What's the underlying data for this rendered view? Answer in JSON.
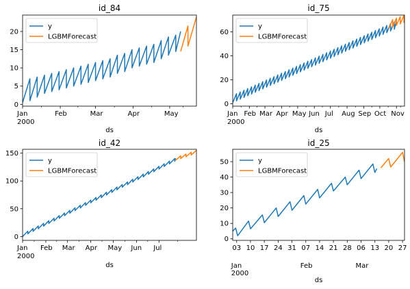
{
  "chart_data": [
    {
      "type": "line",
      "title": "id_84",
      "xlabel": "ds",
      "ylabel": "",
      "xlim": [
        0,
        143
      ],
      "ylim": [
        -0.5,
        24.5
      ],
      "x_ticks": [
        {
          "x": 0,
          "label": "Jan",
          "sub": "2000"
        },
        {
          "x": 31,
          "label": "Feb"
        },
        {
          "x": 60,
          "label": "Mar"
        },
        {
          "x": 91,
          "label": "Apr"
        },
        {
          "x": 121,
          "label": "May"
        }
      ],
      "y_ticks": [
        0,
        5,
        10,
        15,
        20
      ],
      "legend": {
        "placement": "top-left",
        "entries": [
          "y",
          "LGBMForecast"
        ]
      },
      "series": [
        {
          "name": "y",
          "color": "#1f77b4",
          "points": [
            [
              0,
              0.5
            ],
            [
              6,
              7
            ],
            [
              6,
              1
            ],
            [
              12,
              7.5
            ],
            [
              12,
              2
            ],
            [
              18,
              8
            ],
            [
              18,
              3
            ],
            [
              24,
              8.5
            ],
            [
              24,
              3.5
            ],
            [
              30,
              9
            ],
            [
              30,
              4
            ],
            [
              36,
              9.5
            ],
            [
              36,
              4.5
            ],
            [
              42,
              10
            ],
            [
              42,
              5
            ],
            [
              48,
              10.5
            ],
            [
              48,
              5.5
            ],
            [
              54,
              11
            ],
            [
              54,
              6
            ],
            [
              60,
              11.5
            ],
            [
              60,
              6.5
            ],
            [
              66,
              12
            ],
            [
              66,
              7
            ],
            [
              72,
              12.5
            ],
            [
              72,
              7.5
            ],
            [
              78,
              13.5
            ],
            [
              78,
              8.5
            ],
            [
              84,
              14
            ],
            [
              84,
              9
            ],
            [
              90,
              15
            ],
            [
              90,
              10
            ],
            [
              96,
              15.5
            ],
            [
              96,
              10.5
            ],
            [
              102,
              16
            ],
            [
              102,
              11
            ],
            [
              108,
              16.5
            ],
            [
              108,
              11.5
            ],
            [
              114,
              17.5
            ],
            [
              114,
              12.5
            ],
            [
              120,
              18.5
            ],
            [
              120,
              13.5
            ],
            [
              126,
              19
            ],
            [
              126,
              14.5
            ],
            [
              130,
              20
            ]
          ]
        },
        {
          "name": "LGBMForecast",
          "color": "#ff7f0e",
          "points": [
            [
              130,
              14.5
            ],
            [
              136,
              21.5
            ],
            [
              136,
              16
            ],
            [
              143,
              24
            ]
          ]
        }
      ]
    },
    {
      "type": "line",
      "title": "id_75",
      "xlabel": "ds",
      "ylabel": "",
      "xlim": [
        0,
        320
      ],
      "ylim": [
        -2,
        74
      ],
      "x_ticks": [
        {
          "x": 0,
          "label": "Jan",
          "sub": "2000"
        },
        {
          "x": 31,
          "label": "Feb"
        },
        {
          "x": 60,
          "label": "Mar"
        },
        {
          "x": 91,
          "label": "Apr"
        },
        {
          "x": 121,
          "label": "May"
        },
        {
          "x": 152,
          "label": "Jun"
        },
        {
          "x": 182,
          "label": "Jul"
        },
        {
          "x": 213,
          "label": "Aug"
        },
        {
          "x": 244,
          "label": "Sep"
        },
        {
          "x": 274,
          "label": "Oct"
        },
        {
          "x": 305,
          "label": "Nov"
        }
      ],
      "y_ticks": [
        0,
        20,
        40,
        60
      ],
      "legend": {
        "placement": "top-left",
        "entries": [
          "y",
          "LGBMForecast"
        ]
      },
      "series": [
        {
          "name": "y",
          "color": "#1f77b4",
          "start": 0,
          "end": 305,
          "step": 7,
          "base_start": 1,
          "base_end": 63,
          "amp": 6
        },
        {
          "name": "LGBMForecast",
          "color": "#ff7f0e",
          "start": 291,
          "end": 320,
          "step": 7,
          "base_start": 63,
          "base_end": 68,
          "amp": 6
        }
      ]
    },
    {
      "type": "line",
      "title": "id_42",
      "xlabel": "ds",
      "ylabel": "",
      "xlim": [
        0,
        232
      ],
      "ylim": [
        -7,
        157
      ],
      "x_ticks": [
        {
          "x": 0,
          "label": "Jan",
          "sub": "2000"
        },
        {
          "x": 31,
          "label": "Feb"
        },
        {
          "x": 60,
          "label": "Mar"
        },
        {
          "x": 91,
          "label": "Apr"
        },
        {
          "x": 121,
          "label": "May"
        },
        {
          "x": 152,
          "label": "Jun"
        },
        {
          "x": 182,
          "label": "Jul"
        }
      ],
      "y_ticks": [
        0,
        50,
        100,
        150
      ],
      "legend": {
        "placement": "top-left",
        "entries": [
          "y",
          "LGBMForecast"
        ]
      },
      "series": [
        {
          "name": "y",
          "color": "#1f77b4",
          "start": 0,
          "end": 204,
          "step": 7,
          "base_start": 0,
          "base_end": 136,
          "amp": 5
        },
        {
          "name": "LGBMForecast",
          "color": "#ff7f0e",
          "start": 204,
          "end": 232,
          "step": 7,
          "base_start": 137,
          "base_end": 150,
          "amp": 5
        }
      ]
    },
    {
      "type": "line",
      "title": "id_25",
      "xlabel": "ds",
      "ylabel": "",
      "xlim": [
        1,
        88
      ],
      "ylim": [
        -1,
        58
      ],
      "x_ticks": [
        {
          "x": 3,
          "label": "03",
          "sub": "Jan",
          "sub2": "2000"
        },
        {
          "x": 10,
          "label": "10"
        },
        {
          "x": 17,
          "label": "17"
        },
        {
          "x": 24,
          "label": "24"
        },
        {
          "x": 31,
          "label": "31"
        },
        {
          "x": 38,
          "label": "07",
          "sub": "Feb"
        },
        {
          "x": 45,
          "label": "14"
        },
        {
          "x": 52,
          "label": "21"
        },
        {
          "x": 59,
          "label": "28"
        },
        {
          "x": 66,
          "label": "06",
          "sub": "Mar"
        },
        {
          "x": 73,
          "label": "13"
        },
        {
          "x": 80,
          "label": "20"
        },
        {
          "x": 87,
          "label": "27"
        }
      ],
      "y_ticks": [
        0,
        10,
        20,
        30,
        40,
        50
      ],
      "legend": {
        "placement": "top-left",
        "entries": [
          "y",
          "LGBMForecast"
        ]
      },
      "series": [
        {
          "name": "y",
          "color": "#1f77b4",
          "points": [
            [
              1,
              5
            ],
            [
              2.5,
              7
            ],
            [
              3.5,
              2
            ],
            [
              9,
              11.5
            ],
            [
              10,
              6.5
            ],
            [
              16,
              15.5
            ],
            [
              17,
              10.5
            ],
            [
              23,
              20
            ],
            [
              24,
              14.5
            ],
            [
              30,
              24
            ],
            [
              31,
              18.5
            ],
            [
              37,
              28
            ],
            [
              38,
              22.5
            ],
            [
              44,
              32
            ],
            [
              45,
              26.5
            ],
            [
              51,
              36
            ],
            [
              52,
              31
            ],
            [
              58,
              40
            ],
            [
              59,
              35
            ],
            [
              65,
              44.5
            ],
            [
              66,
              39
            ],
            [
              72,
              48.5
            ],
            [
              73,
              43
            ],
            [
              74,
              45.5
            ]
          ]
        },
        {
          "name": "LGBMForecast",
          "color": "#ff7f0e",
          "points": [
            [
              76,
              46
            ],
            [
              80,
              52
            ],
            [
              81,
              46.5
            ],
            [
              87,
              56
            ],
            [
              88,
              50
            ],
            [
              88.5,
              51
            ]
          ]
        }
      ]
    }
  ]
}
